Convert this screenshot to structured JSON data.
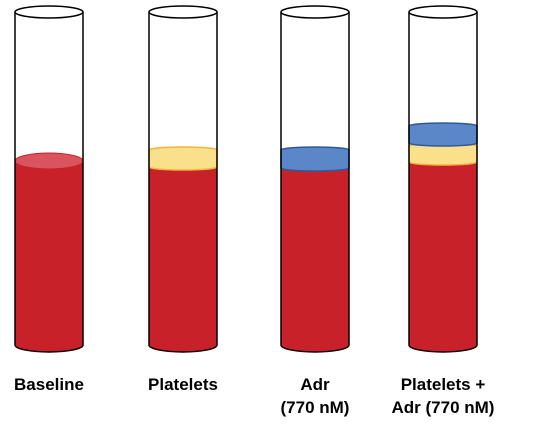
{
  "colors": {
    "blood": "#c8212a",
    "blood_top": "#d9545e",
    "platelet_layer": "#fbe08c",
    "platelet_edge": "#f0b43a",
    "adr_layer": "#5b86c8",
    "adr_edge": "#2e5a9a",
    "glass_outline": "#000000"
  },
  "tubes": [
    {
      "label": "Baseline",
      "layers": [
        "blood"
      ]
    },
    {
      "label": "Platelets",
      "layers": [
        "blood",
        "platelet-layer"
      ]
    },
    {
      "label": "Adr\n(770 nM)",
      "layers": [
        "blood",
        "adr-layer"
      ]
    },
    {
      "label": "Platelets +\nAdr (770 nM)",
      "layers": [
        "blood",
        "platelet-layer",
        "adr-layer"
      ]
    }
  ]
}
